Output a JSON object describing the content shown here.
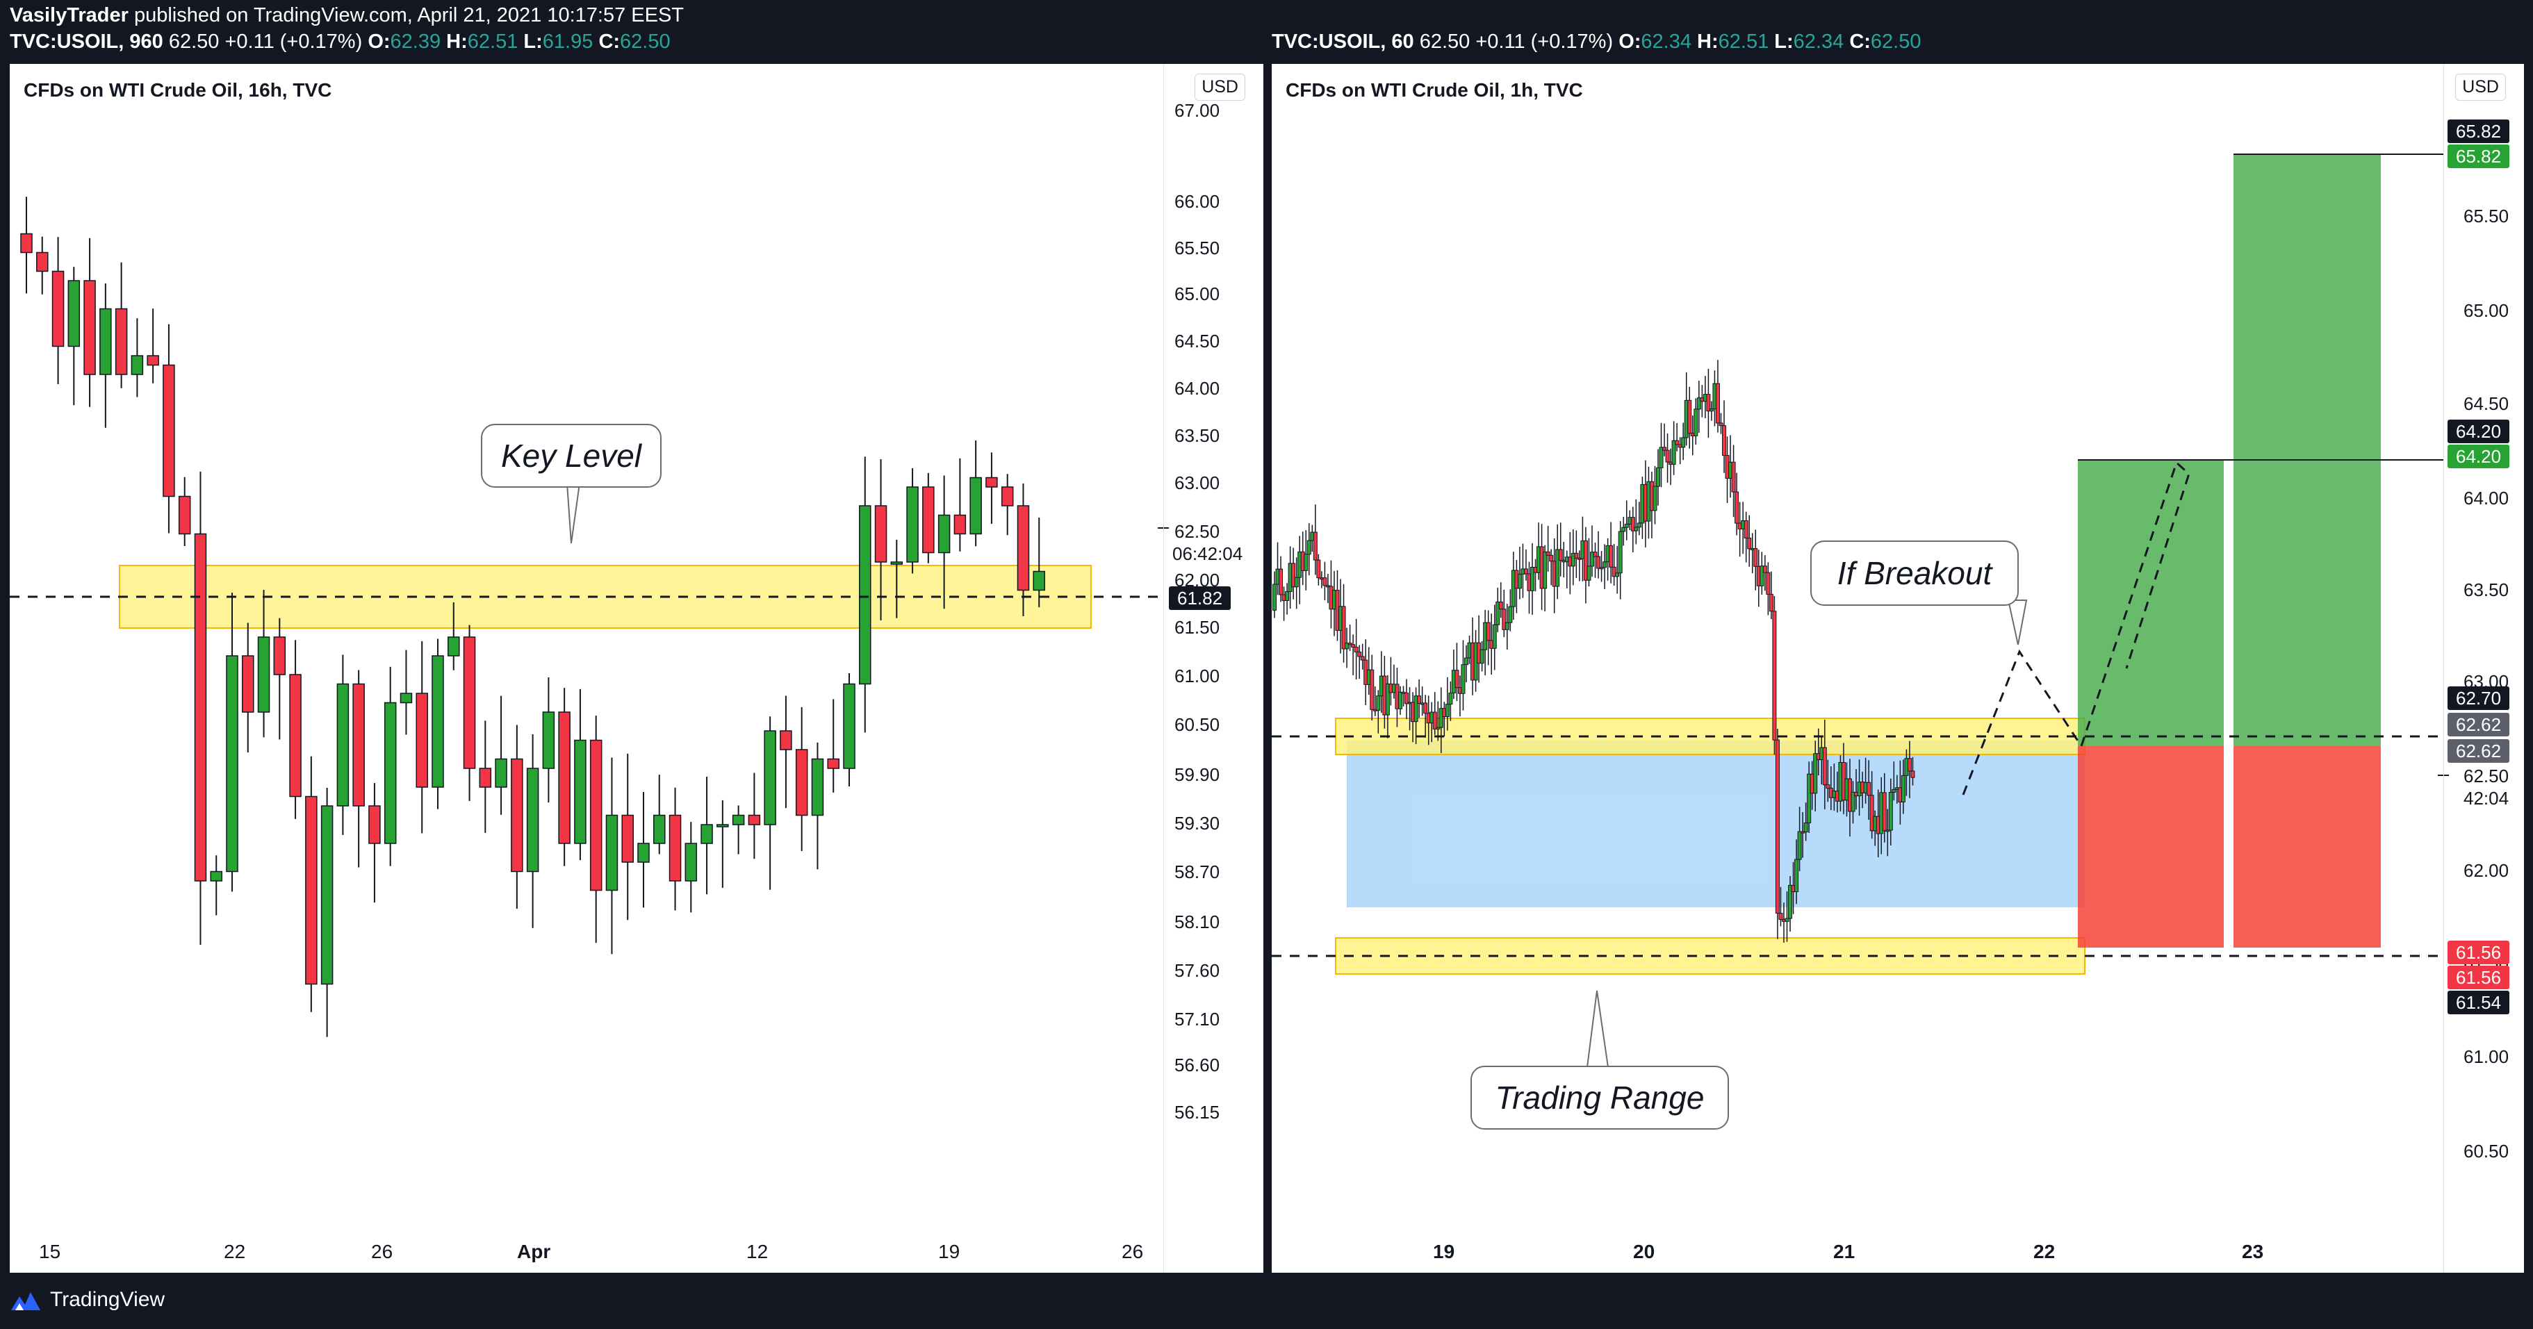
{
  "header": {
    "author": "VasilyTrader",
    "published": "published on TradingView.com, April 21, 2021 10:17:57 EEST"
  },
  "left": {
    "quote": {
      "symbol": "TVC:USOIL, 960",
      "price": "62.50",
      "change": "+0.11 (+0.17%)",
      "o_label": "O:",
      "o": "62.39",
      "h_label": "H:",
      "h": "62.51",
      "l_label": "L:",
      "l": "61.95",
      "c_label": "C:",
      "c": "62.50"
    },
    "title": "CFDs on WTI Crude Oil, 16h, TVC",
    "currency": "USD",
    "y_ticks": [
      "67.00",
      "66.00",
      "65.50",
      "65.00",
      "64.50",
      "64.00",
      "63.50",
      "63.00",
      "62.50",
      "62.00",
      "61.50",
      "61.00",
      "60.50",
      "59.90",
      "59.30",
      "58.70",
      "58.10",
      "57.60",
      "57.10",
      "56.60",
      "56.15"
    ],
    "countdown": "06:42:04",
    "level_tag": "61.82",
    "x_ticks": [
      "15",
      "22",
      "26",
      "Apr",
      "12",
      "19",
      "26"
    ],
    "callout": "Key Level"
  },
  "right": {
    "quote": {
      "symbol": "TVC:USOIL, 60",
      "price": "62.50",
      "change": "+0.11 (+0.17%)",
      "o_label": "O:",
      "o": "62.34",
      "h_label": "H:",
      "h": "62.51",
      "l_label": "L:",
      "l": "62.34",
      "c_label": "C:",
      "c": "62.50"
    },
    "title": "CFDs on WTI Crude Oil, 1h, TVC",
    "currency": "USD",
    "y_ticks": [
      "65.50",
      "65.00",
      "64.50",
      "64.00",
      "63.50",
      "63.00",
      "62.50",
      "62.00",
      "61.50",
      "61.00",
      "60.50"
    ],
    "countdown": "42:04",
    "tags": {
      "tp2_black": "65.82",
      "tp2_green": "65.82",
      "tp1_black": "64.20",
      "tp1_green": "64.20",
      "entry1": "62.70",
      "entry2": "62.62",
      "entry3": "62.62",
      "stop_red1": "61.56",
      "stop_red2": "61.56",
      "stop_black": "61.54"
    },
    "x_ticks": [
      "19",
      "20",
      "21",
      "22",
      "23"
    ],
    "callout_breakout": "If Breakout",
    "callout_range": "Trading Range"
  },
  "footer": {
    "brand": "TradingView"
  },
  "colors": {
    "up": "#26a333",
    "down": "#f23645",
    "zone": "#fff176",
    "range": "#90caf9",
    "profit": "#4caf50",
    "loss": "#f44336"
  }
}
